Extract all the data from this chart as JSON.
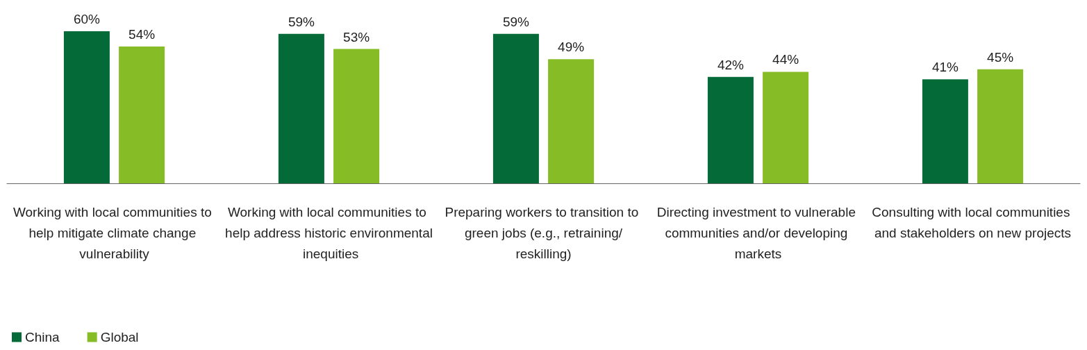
{
  "chart_data": {
    "type": "bar",
    "categories": [
      "Working with local communities to help mitigate climate change vulnerability",
      "Working with local communities to help address historic environmental inequities",
      "Preparing workers to transition to green jobs (e.g., retraining/reskilling)",
      "Directing investment to vulnerable communities and/or developing markets",
      "Consulting with local communities and stakeholders on new projects"
    ],
    "series": [
      {
        "name": "China",
        "color": "#046a38",
        "values": [
          60,
          59,
          59,
          42,
          41
        ],
        "value_labels": [
          "60%",
          "59%",
          "59%",
          "42%",
          "41%"
        ]
      },
      {
        "name": "Global",
        "color": "#86bc25",
        "values": [
          54,
          53,
          49,
          44,
          45
        ],
        "value_labels": [
          "54%",
          "53%",
          "49%",
          "44%",
          "45%"
        ]
      }
    ],
    "legend": "bottom left"
  }
}
